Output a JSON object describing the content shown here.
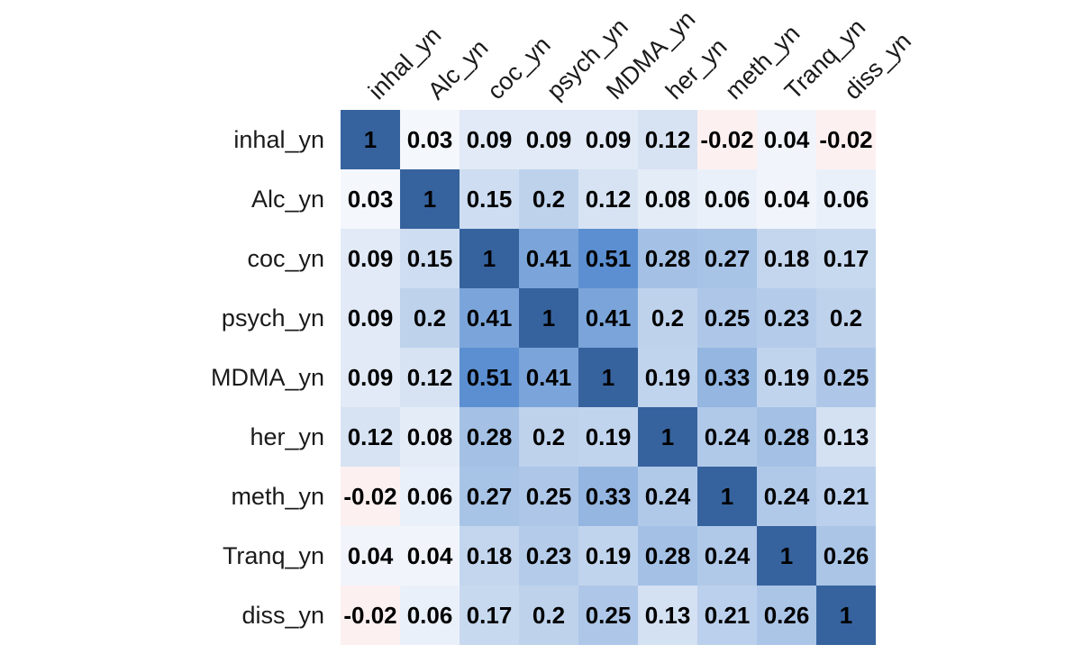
{
  "chart_data": {
    "type": "heatmap",
    "title": "",
    "xlabel": "",
    "ylabel": "",
    "rows": [
      "inhal_yn",
      "Alc_yn",
      "coc_yn",
      "psych_yn",
      "MDMA_yn",
      "her_yn",
      "meth_yn",
      "Tranq_yn",
      "diss_yn"
    ],
    "columns": [
      "inhal_yn",
      "Alc_yn",
      "coc_yn",
      "psych_yn",
      "MDMA_yn",
      "her_yn",
      "meth_yn",
      "Tranq_yn",
      "diss_yn"
    ],
    "values": [
      [
        1,
        0.03,
        0.09,
        0.09,
        0.09,
        0.12,
        -0.02,
        0.04,
        -0.02
      ],
      [
        0.03,
        1,
        0.15,
        0.2,
        0.12,
        0.08,
        0.06,
        0.04,
        0.06
      ],
      [
        0.09,
        0.15,
        1,
        0.41,
        0.51,
        0.28,
        0.27,
        0.18,
        0.17
      ],
      [
        0.09,
        0.2,
        0.41,
        1,
        0.41,
        0.2,
        0.25,
        0.23,
        0.2
      ],
      [
        0.09,
        0.12,
        0.51,
        0.41,
        1,
        0.19,
        0.33,
        0.19,
        0.25
      ],
      [
        0.12,
        0.08,
        0.28,
        0.2,
        0.19,
        1,
        0.24,
        0.28,
        0.13
      ],
      [
        -0.02,
        0.06,
        0.27,
        0.25,
        0.33,
        0.24,
        1,
        0.24,
        0.21
      ],
      [
        0.04,
        0.04,
        0.18,
        0.23,
        0.19,
        0.28,
        0.24,
        1,
        0.26
      ],
      [
        -0.02,
        0.06,
        0.17,
        0.2,
        0.25,
        0.13,
        0.21,
        0.26,
        1
      ]
    ],
    "color_scale": {
      "negative": "#fdf0f0",
      "zero": "#ffffff",
      "positive_low": "#e4ecf7",
      "positive_mid": "#5b8fd1",
      "positive_high": "#36639e"
    },
    "legend": "none",
    "grid": false
  }
}
